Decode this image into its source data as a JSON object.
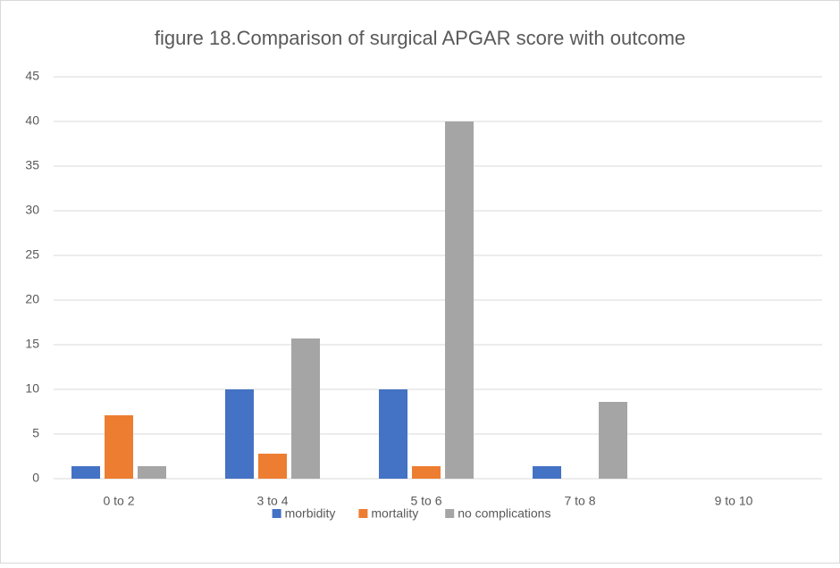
{
  "chart_data": {
    "type": "bar",
    "title": "figure 18.Comparison of surgical APGAR score with outcome",
    "categories": [
      "0 to 2",
      "3 to 4",
      "5 to 6",
      "7 to 8",
      "9 to 10"
    ],
    "series": [
      {
        "name": "morbidity",
        "color": "#4472c4",
        "values": [
          1.4,
          10,
          10,
          1.4,
          0
        ]
      },
      {
        "name": "mortality",
        "color": "#ed7d31",
        "values": [
          7.1,
          2.8,
          1.4,
          0,
          0
        ]
      },
      {
        "name": "no complications",
        "color": "#a5a5a5",
        "values": [
          1.4,
          15.7,
          40,
          8.6,
          0
        ]
      }
    ],
    "ylim": [
      0,
      45
    ],
    "yticks": [
      0,
      5,
      10,
      15,
      20,
      25,
      30,
      35,
      40,
      45
    ],
    "grid": true,
    "legend": "bottom"
  }
}
